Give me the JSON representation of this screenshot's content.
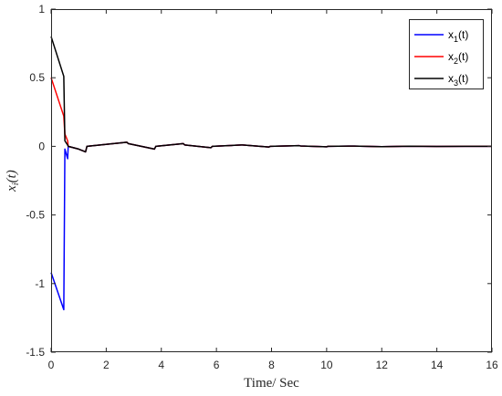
{
  "chart_data": {
    "type": "line",
    "title": "",
    "xlabel": "Time/ Sec",
    "ylabel": "x_i(t)",
    "xlim": [
      0,
      16
    ],
    "ylim": [
      -1.5,
      1
    ],
    "xticks": [
      0,
      2,
      4,
      6,
      8,
      10,
      12,
      14,
      16
    ],
    "yticks": [
      -1.5,
      -1,
      -0.5,
      0,
      0.5,
      1
    ],
    "grid": false,
    "legend_position": "top-right",
    "series": [
      {
        "name": "x_1(t)",
        "legend_base": "x",
        "legend_sub": "1",
        "legend_suffix": "(t)",
        "color": "#0000ff",
        "points": [
          [
            0,
            -0.92
          ],
          [
            0.46,
            -1.19
          ],
          [
            0.5,
            -0.02
          ],
          [
            0.6,
            -0.09
          ],
          [
            0.62,
            0.0
          ],
          [
            1.0,
            -0.02
          ],
          [
            1.25,
            -0.04
          ],
          [
            1.3,
            0.0
          ],
          [
            2.75,
            0.03
          ],
          [
            2.8,
            0.02
          ],
          [
            3.75,
            -0.02
          ],
          [
            3.8,
            0.0
          ],
          [
            4.8,
            0.02
          ],
          [
            4.85,
            0.01
          ],
          [
            5.8,
            -0.01
          ],
          [
            5.85,
            0.0
          ],
          [
            6.9,
            0.01
          ],
          [
            6.95,
            0.01
          ],
          [
            7.9,
            -0.005
          ],
          [
            7.95,
            0.0
          ],
          [
            9.0,
            0.005
          ],
          [
            9.05,
            0.003
          ],
          [
            10.0,
            -0.003
          ],
          [
            10.05,
            0.0
          ],
          [
            11.0,
            0.002
          ],
          [
            12.0,
            -0.002
          ],
          [
            13.0,
            0.001
          ],
          [
            14.0,
            -0.001
          ],
          [
            15.0,
            0.0
          ],
          [
            16.0,
            0.0
          ]
        ]
      },
      {
        "name": "x_2(t)",
        "legend_base": "x",
        "legend_sub": "2",
        "legend_suffix": "(t)",
        "color": "#ff0000",
        "points": [
          [
            0,
            0.5
          ],
          [
            0.46,
            0.22
          ],
          [
            0.5,
            0.09
          ],
          [
            0.6,
            0.04
          ],
          [
            0.62,
            0.0
          ],
          [
            1.0,
            -0.02
          ],
          [
            1.25,
            -0.04
          ],
          [
            1.3,
            0.0
          ],
          [
            2.75,
            0.03
          ],
          [
            2.8,
            0.02
          ],
          [
            3.75,
            -0.02
          ],
          [
            3.8,
            0.0
          ],
          [
            4.8,
            0.02
          ],
          [
            4.85,
            0.01
          ],
          [
            5.8,
            -0.01
          ],
          [
            5.85,
            0.0
          ],
          [
            6.9,
            0.01
          ],
          [
            6.95,
            0.01
          ],
          [
            7.9,
            -0.005
          ],
          [
            7.95,
            0.0
          ],
          [
            9.0,
            0.005
          ],
          [
            9.05,
            0.003
          ],
          [
            10.0,
            -0.003
          ],
          [
            10.05,
            0.0
          ],
          [
            11.0,
            0.002
          ],
          [
            12.0,
            -0.002
          ],
          [
            13.0,
            0.001
          ],
          [
            14.0,
            -0.001
          ],
          [
            15.0,
            0.0
          ],
          [
            16.0,
            0.0
          ]
        ]
      },
      {
        "name": "x_3(t)",
        "legend_base": "x",
        "legend_sub": "3",
        "legend_suffix": "(t)",
        "color": "#000000",
        "points": [
          [
            0,
            0.8
          ],
          [
            0.46,
            0.51
          ],
          [
            0.5,
            0.04
          ],
          [
            0.6,
            0.01
          ],
          [
            0.62,
            0.0
          ],
          [
            1.0,
            -0.02
          ],
          [
            1.25,
            -0.04
          ],
          [
            1.3,
            0.0
          ],
          [
            2.75,
            0.03
          ],
          [
            2.8,
            0.02
          ],
          [
            3.75,
            -0.02
          ],
          [
            3.8,
            0.0
          ],
          [
            4.8,
            0.02
          ],
          [
            4.85,
            0.01
          ],
          [
            5.8,
            -0.01
          ],
          [
            5.85,
            0.0
          ],
          [
            6.9,
            0.01
          ],
          [
            6.95,
            0.01
          ],
          [
            7.9,
            -0.005
          ],
          [
            7.95,
            0.0
          ],
          [
            9.0,
            0.005
          ],
          [
            9.05,
            0.003
          ],
          [
            10.0,
            -0.003
          ],
          [
            10.05,
            0.0
          ],
          [
            11.0,
            0.002
          ],
          [
            12.0,
            -0.002
          ],
          [
            13.0,
            0.001
          ],
          [
            14.0,
            -0.001
          ],
          [
            15.0,
            0.0
          ],
          [
            16.0,
            0.0
          ]
        ]
      }
    ]
  }
}
